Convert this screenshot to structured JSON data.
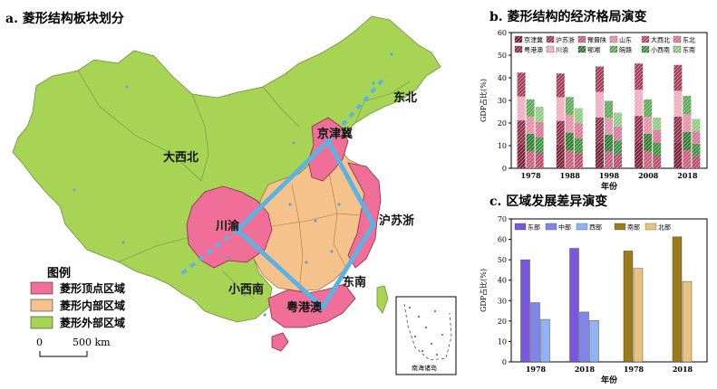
{
  "panel_a": {
    "title": "a. 菱形结构板块划分",
    "region_labels": {
      "northeast": "东北",
      "greater_northwest": "大西北",
      "jingjinji": "京津冀",
      "chuanyu": "川渝",
      "hushezhe": "沪苏浙",
      "southeast": "东南",
      "small_southwest": "小西南",
      "yuegangao": "粤港澳",
      "south_sea_islands": "南海诸岛"
    },
    "legend": {
      "title": "图例",
      "items": [
        {
          "label": "菱形顶点区域",
          "color": "#ef6f98"
        },
        {
          "label": "菱形内部区域",
          "color": "#f6c28c"
        },
        {
          "label": "菱形外部区域",
          "color": "#a8d456"
        }
      ]
    },
    "scale": {
      "start": "0",
      "end": "500 km"
    },
    "colors": {
      "rhombus_line": "#5ab3e2",
      "northeast_axis": "#5ab3e2"
    }
  },
  "chart_data": [
    {
      "type": "bar",
      "title": "b. 菱形结构的经济格局演变",
      "xlabel": "年份",
      "ylabel": "GDP占比(%)",
      "ylim": [
        0,
        60
      ],
      "yticks": [
        0,
        10,
        20,
        30,
        40,
        50,
        60
      ],
      "categories": [
        "1978",
        "1988",
        "1998",
        "2008",
        "2018"
      ],
      "stacked_groups": [
        {
          "name": "vertices",
          "segments": [
            "京津冀",
            "沪苏浙",
            "粤港澳",
            "川渝"
          ]
        },
        {
          "name": "inner",
          "segments": [
            "豫晋陕",
            "鄂湘",
            "山东",
            "皖赣"
          ]
        },
        {
          "name": "outer",
          "segments": [
            "大西北",
            "小西南",
            "东北",
            "东南"
          ]
        }
      ],
      "legend": [
        "京津冀",
        "沪苏浙",
        "豫晋陕",
        "山东",
        "大西北",
        "东北",
        "粤港澳",
        "川渝",
        "鄂湘",
        "皖赣",
        "小西南",
        "东南"
      ],
      "series_totals": [
        {
          "name": "vertices",
          "values": [
            42.3,
            41.9,
            45.0,
            46.3,
            45.7
          ]
        },
        {
          "name": "inner",
          "values": [
            30.5,
            31.5,
            29.8,
            30.4,
            32.0
          ]
        },
        {
          "name": "outer",
          "values": [
            27.2,
            26.6,
            24.6,
            22.4,
            21.8
          ]
        }
      ],
      "grid": false,
      "legend_position": "top"
    },
    {
      "type": "bar",
      "title": "c. 区域发展差异演变",
      "xlabel": "年份",
      "ylabel": "GDP占比(%)",
      "ylim": [
        0,
        70
      ],
      "yticks": [
        0,
        10,
        20,
        30,
        40,
        50,
        60,
        70
      ],
      "groups": [
        {
          "categories": [
            "1978",
            "2018"
          ],
          "series": [
            {
              "name": "东部",
              "color": "#7a57e0",
              "values": [
                50.0,
                55.6
              ]
            },
            {
              "name": "中部",
              "color": "#7f86e6",
              "values": [
                29.0,
                24.4
              ]
            },
            {
              "name": "西部",
              "color": "#8fb3f5",
              "values": [
                20.8,
                20.3
              ]
            }
          ]
        },
        {
          "categories": [
            "1978",
            "2018"
          ],
          "series": [
            {
              "name": "南部",
              "color": "#9b7b1a",
              "values": [
                54.3,
                61.2
              ]
            },
            {
              "name": "北部",
              "color": "#e6c47f",
              "values": [
                45.8,
                39.4
              ]
            }
          ]
        }
      ],
      "legend_position": "top"
    }
  ]
}
